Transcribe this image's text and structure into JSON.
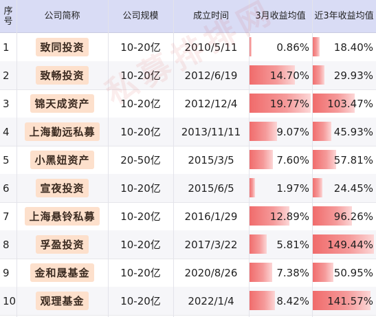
{
  "watermark": "私募排排网",
  "header": {
    "index": "序号",
    "name": "公司简称",
    "scale": "公司规模",
    "founded": "成立时间",
    "ret3m": "3月收益均值",
    "ret3y": "近3年收益均值"
  },
  "rows": [
    {
      "index": "1",
      "name": "致同投资",
      "scale": "10-20亿",
      "founded": "2010/5/11",
      "ret3m": "0.86%",
      "ret3m_value": 0.86,
      "ret3y": "18.40%",
      "ret3y_value": 18.4
    },
    {
      "index": "2",
      "name": "致畅投资",
      "scale": "10-20亿",
      "founded": "2012/6/19",
      "ret3m": "14.70%",
      "ret3m_value": 14.7,
      "ret3y": "29.93%",
      "ret3y_value": 29.93
    },
    {
      "index": "3",
      "name": "锦天成资产",
      "scale": "10-20亿",
      "founded": "2012/12/4",
      "ret3m": "19.77%",
      "ret3m_value": 19.77,
      "ret3y": "103.47%",
      "ret3y_value": 103.47
    },
    {
      "index": "4",
      "name": "上海勤远私募",
      "scale": "10-20亿",
      "founded": "2013/11/11",
      "ret3m": "9.07%",
      "ret3m_value": 9.07,
      "ret3y": "45.93%",
      "ret3y_value": 45.93
    },
    {
      "index": "5",
      "name": "小黑妞资产",
      "scale": "20-50亿",
      "founded": "2015/3/5",
      "ret3m": "7.60%",
      "ret3m_value": 7.6,
      "ret3y": "57.81%",
      "ret3y_value": 57.81
    },
    {
      "index": "6",
      "name": "宣夜投资",
      "scale": "10-20亿",
      "founded": "2015/6/5",
      "ret3m": "1.97%",
      "ret3m_value": 1.97,
      "ret3y": "24.45%",
      "ret3y_value": 24.45
    },
    {
      "index": "7",
      "name": "上海悬铃私募",
      "scale": "10-20亿",
      "founded": "2016/1/29",
      "ret3m": "12.89%",
      "ret3m_value": 12.89,
      "ret3y": "96.26%",
      "ret3y_value": 96.26
    },
    {
      "index": "8",
      "name": "孚盈投资",
      "scale": "10-20亿",
      "founded": "2017/3/22",
      "ret3m": "5.81%",
      "ret3m_value": 5.81,
      "ret3y": "149.44%",
      "ret3y_value": 149.44
    },
    {
      "index": "9",
      "name": "金和晟基金",
      "scale": "10-20亿",
      "founded": "2020/8/26",
      "ret3m": "7.38%",
      "ret3m_value": 7.38,
      "ret3y": "50.95%",
      "ret3y_value": 50.95
    },
    {
      "index": "10",
      "name": "观理基金",
      "scale": "10-20亿",
      "founded": "2022/1/4",
      "ret3m": "8.42%",
      "ret3m_value": 8.42,
      "ret3y": "141.57%",
      "ret3y_value": 141.57
    }
  ],
  "colors": {
    "header_bg": "#d9dcf5",
    "tag_bg": "#fde0cc",
    "bar": "#f06a6a"
  }
}
